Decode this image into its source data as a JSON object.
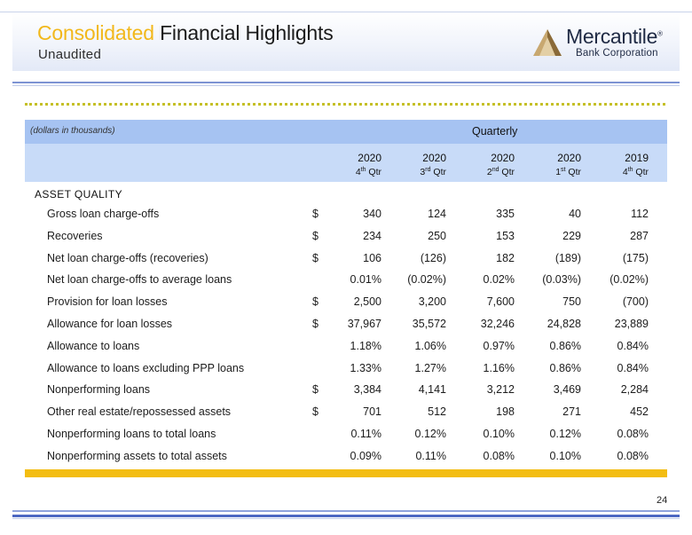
{
  "header": {
    "title_accent": "Consolidated",
    "title_rest": " Financial Highlights",
    "subtitle": "Unaudited"
  },
  "logo": {
    "name": "Mercantile",
    "registered": "®",
    "sub": "Bank Corporation",
    "icon": "triangle-mountain-icon"
  },
  "table": {
    "units_note": "(dollars in thousands)",
    "group_header": "Quarterly",
    "columns": [
      {
        "year": "2020",
        "q": "4",
        "sup": "th",
        "suffix": " Qtr"
      },
      {
        "year": "2020",
        "q": "3",
        "sup": "rd",
        "suffix": " Qtr"
      },
      {
        "year": "2020",
        "q": "2",
        "sup": "nd",
        "suffix": " Qtr"
      },
      {
        "year": "2020",
        "q": "1",
        "sup": "st",
        "suffix": " Qtr"
      },
      {
        "year": "2019",
        "q": "4",
        "sup": "th",
        "suffix": " Qtr"
      }
    ],
    "section": "ASSET QUALITY",
    "rows": [
      {
        "label": "Gross loan charge-offs",
        "dollar": "$",
        "values": [
          "340",
          "124",
          "335",
          "40",
          "112"
        ]
      },
      {
        "label": "Recoveries",
        "dollar": "$",
        "values": [
          "234",
          "250",
          "153",
          "229",
          "287"
        ]
      },
      {
        "label": "Net loan charge-offs (recoveries)",
        "dollar": "$",
        "values": [
          "106",
          "(126)",
          "182",
          "(189)",
          "(175)"
        ]
      },
      {
        "label": "Net loan charge-offs to average loans",
        "dollar": "",
        "values": [
          "0.01%",
          "(0.02%)",
          "0.02%",
          "(0.03%)",
          "(0.02%)"
        ]
      },
      {
        "label": "Provision for loan losses",
        "dollar": "$",
        "values": [
          "2,500",
          "3,200",
          "7,600",
          "750",
          "(700)"
        ]
      },
      {
        "label": "Allowance for loan losses",
        "dollar": "$",
        "values": [
          "37,967",
          "35,572",
          "32,246",
          "24,828",
          "23,889"
        ]
      },
      {
        "label": "Allowance to loans",
        "dollar": "",
        "values": [
          "1.18%",
          "1.06%",
          "0.97%",
          "0.86%",
          "0.84%"
        ]
      },
      {
        "label": "Allowance to loans excluding PPP loans",
        "dollar": "",
        "values": [
          "1.33%",
          "1.27%",
          "1.16%",
          "0.86%",
          "0.84%"
        ]
      },
      {
        "label": "Nonperforming loans",
        "dollar": "$",
        "values": [
          "3,384",
          "4,141",
          "3,212",
          "3,469",
          "2,284"
        ]
      },
      {
        "label": "Other real estate/repossessed assets",
        "dollar": "$",
        "values": [
          "701",
          "512",
          "198",
          "271",
          "452"
        ]
      },
      {
        "label": "Nonperforming loans to total loans",
        "dollar": "",
        "values": [
          "0.11%",
          "0.12%",
          "0.10%",
          "0.12%",
          "0.08%"
        ]
      },
      {
        "label": "Nonperforming assets to total assets",
        "dollar": "",
        "values": [
          "0.09%",
          "0.11%",
          "0.08%",
          "0.10%",
          "0.08%"
        ]
      }
    ]
  },
  "page_number": "24",
  "colors": {
    "accent_gold": "#f2b81b",
    "header_blue": "#a6c3f2",
    "subheader_blue": "#c8dbf8",
    "rule_blue": "#4c67c2",
    "logo_navy": "#1f2a44"
  }
}
